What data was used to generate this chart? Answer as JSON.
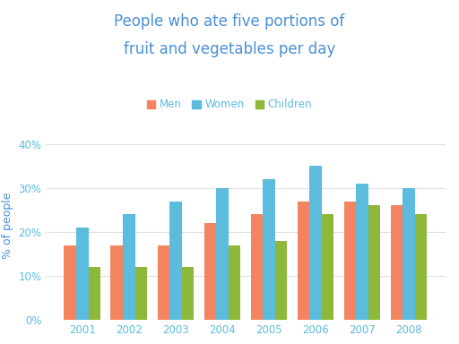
{
  "title_line1": "People who ate five portions of",
  "title_line2": "fruit and vegetables per day",
  "ylabel": "% of people",
  "years": [
    2001,
    2002,
    2003,
    2004,
    2005,
    2006,
    2007,
    2008
  ],
  "men": [
    17,
    17,
    17,
    22,
    24,
    27,
    27,
    26
  ],
  "women": [
    21,
    24,
    27,
    30,
    32,
    35,
    31,
    30
  ],
  "children": [
    12,
    12,
    12,
    17,
    18,
    24,
    26,
    24
  ],
  "color_men": "#F4845F",
  "color_women": "#5BBCDD",
  "color_children": "#8DB83A",
  "title_color": "#4A90D9",
  "ylabel_color": "#4A90D9",
  "tick_color": "#5BBCDD",
  "yticks": [
    0,
    10,
    20,
    30,
    40
  ],
  "ytick_labels": [
    "0%",
    "10%",
    "20%",
    "30%",
    "40%"
  ],
  "ylim": [
    0,
    43
  ],
  "background_color": "#ffffff",
  "grid_color": "#e0e0e0",
  "bar_width": 0.26,
  "legend_labels": [
    "Men",
    "Women",
    "Children"
  ],
  "title_fontsize": 12,
  "label_fontsize": 9,
  "tick_fontsize": 8.5,
  "legend_fontsize": 8.5
}
